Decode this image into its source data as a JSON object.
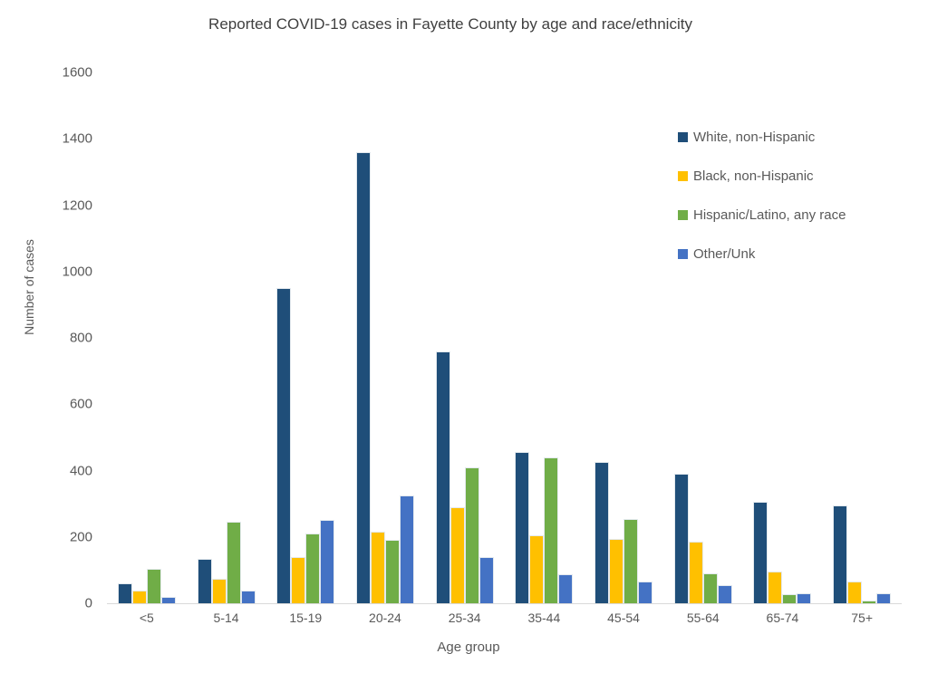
{
  "chart_data": {
    "type": "bar",
    "title": "Reported COVID-19 cases in Fayette County by age and race/ethnicity",
    "xlabel": "Age group",
    "ylabel": "Number of cases",
    "ylim": [
      0,
      1600
    ],
    "ytick_step": 200,
    "grid": false,
    "legend_position": "top-right",
    "background_color": "#ffffff",
    "axis_line_color": "#d9d9d9",
    "text_color": "#595959",
    "title_color": "#404040",
    "categories": [
      "<5",
      "5-14",
      "15-19",
      "20-24",
      "25-34",
      "35-44",
      "45-54",
      "55-64",
      "65-74",
      "75+"
    ],
    "series": [
      {
        "name": "White, non-Hispanic",
        "color": "#1F4E79",
        "values": [
          60,
          135,
          950,
          1360,
          760,
          455,
          425,
          390,
          305,
          295
        ]
      },
      {
        "name": "Black, non-Hispanic",
        "color": "#FFC000",
        "values": [
          38,
          75,
          140,
          215,
          290,
          205,
          195,
          185,
          95,
          65
        ]
      },
      {
        "name": "Hispanic/Latino, any race",
        "color": "#70AD47",
        "values": [
          105,
          245,
          210,
          190,
          410,
          440,
          255,
          90,
          28,
          8
        ]
      },
      {
        "name": "Other/Unk",
        "color": "#4472C4",
        "values": [
          18,
          37,
          250,
          325,
          140,
          88,
          65,
          55,
          30,
          30
        ]
      }
    ]
  }
}
